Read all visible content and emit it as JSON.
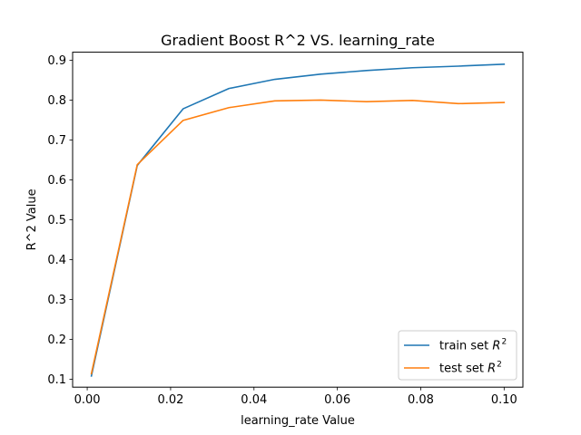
{
  "chart_data": {
    "type": "line",
    "title": "Gradient Boost R^2 VS. learning_rate",
    "xlabel": "learning_rate Value",
    "ylabel": "R^2 Value",
    "xlim": [
      -0.0035,
      0.1045
    ],
    "ylim": [
      0.08,
      0.92
    ],
    "x_ticks": [
      0.0,
      0.02,
      0.04,
      0.06,
      0.08,
      0.1
    ],
    "x_tick_labels": [
      "0.00",
      "0.02",
      "0.04",
      "0.06",
      "0.08",
      "0.10"
    ],
    "y_ticks": [
      0.1,
      0.2,
      0.3,
      0.4,
      0.5,
      0.6,
      0.7,
      0.8,
      0.9
    ],
    "y_tick_labels": [
      "0.1",
      "0.2",
      "0.3",
      "0.4",
      "0.5",
      "0.6",
      "0.7",
      "0.8",
      "0.9"
    ],
    "grid": false,
    "legend_position": "lower-right",
    "x": [
      0.001,
      0.012,
      0.023,
      0.034,
      0.045,
      0.056,
      0.067,
      0.078,
      0.089,
      0.1
    ],
    "series": [
      {
        "legend_prefix": "train set ",
        "legend_math": "R",
        "legend_sup": "2",
        "color": "#1f77b4",
        "values": [
          0.108,
          0.636,
          0.778,
          0.829,
          0.852,
          0.865,
          0.874,
          0.881,
          0.885,
          0.89
        ]
      },
      {
        "legend_prefix": "test set ",
        "legend_math": "R",
        "legend_sup": "2",
        "color": "#ff7f0e",
        "values": [
          0.114,
          0.638,
          0.749,
          0.781,
          0.798,
          0.8,
          0.796,
          0.799,
          0.791,
          0.794
        ]
      }
    ]
  }
}
